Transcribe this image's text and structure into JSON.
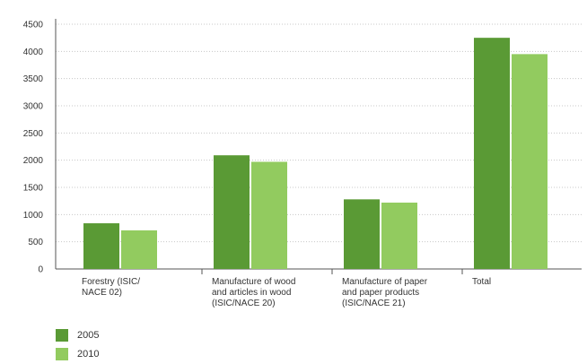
{
  "chart_data": {
    "type": "bar",
    "categories": [
      [
        "Forestry (ISIC/",
        "NACE 02)"
      ],
      [
        "Manufacture of wood",
        "and articles in wood",
        "(ISIC/NACE 20)"
      ],
      [
        "Manufacture of paper",
        "and paper products",
        "(ISIC/NACE 21)"
      ],
      [
        "Total"
      ]
    ],
    "series": [
      {
        "name": "2005",
        "color": "#5a9a35",
        "values": [
          840,
          2090,
          1280,
          4250
        ]
      },
      {
        "name": "2010",
        "color": "#92cb5f",
        "values": [
          710,
          1970,
          1220,
          3950
        ]
      }
    ],
    "yticks": [
      "0",
      "500",
      "1000",
      "1500",
      "2000",
      "2500",
      "3000",
      "3500",
      "4000",
      "4500"
    ],
    "ylim": [
      0,
      4500
    ],
    "grid": true,
    "legend_position": "bottom-left"
  }
}
